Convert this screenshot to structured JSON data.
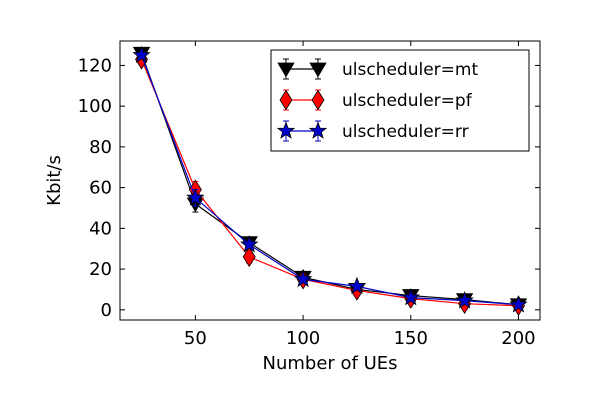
{
  "chart_data": {
    "type": "line",
    "xlabel": "Number of UEs",
    "ylabel": "Kbit/s",
    "xlim": [
      15,
      210
    ],
    "ylim": [
      -5,
      132
    ],
    "xticks": [
      50,
      100,
      150,
      200
    ],
    "yticks": [
      0,
      20,
      40,
      60,
      80,
      100,
      120
    ],
    "grid": false,
    "legend_position": "top-right",
    "x": [
      25,
      50,
      75,
      100,
      125,
      150,
      175,
      200
    ],
    "series": [
      {
        "name": "ulscheduler=mt",
        "color": "#000000",
        "marker": "triangle-down",
        "values": [
          126,
          52,
          33,
          16,
          10,
          7,
          5,
          2.5
        ],
        "errors": [
          1.5,
          4,
          2,
          1.5,
          1,
          1,
          1,
          0.5
        ]
      },
      {
        "name": "ulscheduler=pf",
        "color": "#ff0000",
        "marker": "diamond",
        "values": [
          123,
          59,
          26,
          15,
          9.5,
          5.5,
          3,
          2
        ],
        "errors": [
          1.5,
          4,
          3,
          1.5,
          1,
          1,
          0.5,
          0.5
        ]
      },
      {
        "name": "ulscheduler=rr",
        "color": "#0000cc",
        "marker": "star",
        "values": [
          125,
          55,
          32,
          15,
          11.5,
          6,
          4.5,
          2.5
        ],
        "errors": [
          1.5,
          4,
          2,
          1.5,
          1,
          1,
          1,
          0.5
        ]
      }
    ]
  }
}
